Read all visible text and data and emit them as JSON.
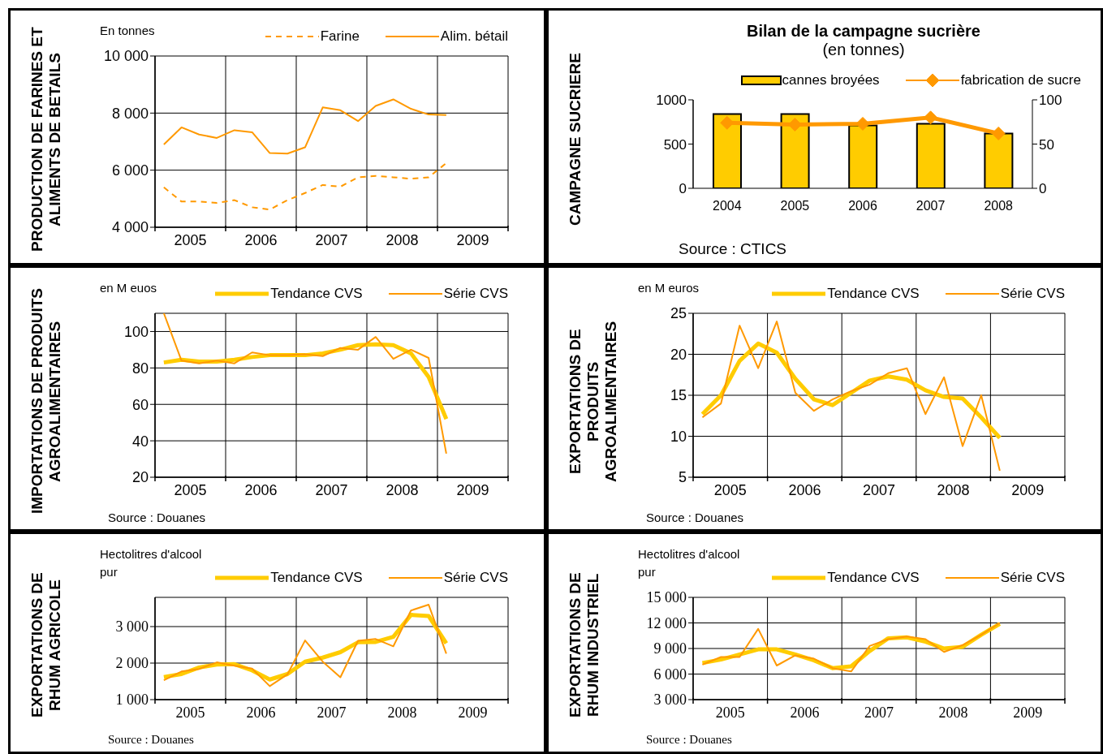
{
  "chart_data": [
    {
      "type": "line",
      "ylabel": "PRODUCTION DE FARINES ET ALIMENTS DE BETAILS",
      "subtitle": "En tonnes",
      "x": [
        2005.125,
        2005.375,
        2005.625,
        2005.875,
        2006.125,
        2006.375,
        2006.625,
        2006.875,
        2007.125,
        2007.375,
        2007.625,
        2007.875,
        2008.125,
        2008.375,
        2008.625,
        2008.875,
        2009.125
      ],
      "series": [
        {
          "name": "Farine",
          "color": "#ff9900",
          "line_style": "dashed",
          "values": [
            5400,
            4900,
            4900,
            4850,
            4950,
            4700,
            4620,
            4950,
            5200,
            5480,
            5420,
            5750,
            5800,
            5750,
            5700,
            5750,
            6250
          ]
        },
        {
          "name": "Alim. bétail",
          "color": "#ff9900",
          "values": [
            6900,
            7500,
            7250,
            7130,
            7400,
            7330,
            6600,
            6580,
            6800,
            8200,
            8100,
            7720,
            8250,
            8480,
            8150,
            7950,
            7930
          ]
        }
      ],
      "xlim": [
        2005,
        2010
      ],
      "xticks": [
        {
          "value": 2005,
          "label": null
        },
        {
          "value": 2005.5,
          "label": "2005"
        },
        {
          "value": 2006,
          "label": null
        },
        {
          "value": 2006.5,
          "label": "2006"
        },
        {
          "value": 2007,
          "label": null
        },
        {
          "value": 2007.5,
          "label": "2007"
        },
        {
          "value": 2008,
          "label": null
        },
        {
          "value": 2008.5,
          "label": "2008"
        },
        {
          "value": 2009,
          "label": null
        },
        {
          "value": 2009.5,
          "label": "2009"
        },
        {
          "value": 2010,
          "label": null
        }
      ],
      "ylim": [
        4000,
        10000
      ],
      "yticks": [
        {
          "value": 4000,
          "label": "4 000"
        },
        {
          "value": 6000,
          "label": "6 000"
        },
        {
          "value": 8000,
          "label": "8 000"
        },
        {
          "value": 10000,
          "label": "10 000"
        }
      ],
      "grid": true,
      "legend": "top right"
    },
    {
      "type": "bar",
      "title": "Bilan de la campagne sucrière",
      "subtitle": "(en tonnes)",
      "ylabel": "CAMPAGNE SUCRIERE",
      "categories": [
        "2004",
        "2005",
        "2006",
        "2007",
        "2008"
      ],
      "series": [
        {
          "name": "cannes broyées",
          "color": "#ffcc00",
          "values": [
            840,
            840,
            710,
            730,
            620
          ]
        },
        {
          "name": "fabrication de sucre",
          "type": "line",
          "axis": "y2",
          "color": "#ff9900",
          "values": [
            74,
            72,
            73,
            80,
            62
          ]
        }
      ],
      "ylim": [
        0,
        1000
      ],
      "yticks": [
        0,
        500,
        1000
      ],
      "y2lim": [
        0,
        100
      ],
      "y2ticks": [
        0,
        50,
        100
      ],
      "marker": "diamond",
      "legend": "top",
      "annotations": [
        "Source : CTICS"
      ]
    },
    {
      "type": "line",
      "ylabel": "IMPORTATIONS DE PRODUITS AGROALIMENTAIRES",
      "subtitle": "en M euos",
      "x": [
        2005.125,
        2005.375,
        2005.625,
        2005.875,
        2006.125,
        2006.375,
        2006.625,
        2006.875,
        2007.125,
        2007.375,
        2007.625,
        2007.875,
        2008.125,
        2008.375,
        2008.625,
        2008.875,
        2009.125
      ],
      "series": [
        {
          "name": "Tendance CVS",
          "color": "#ffcc00",
          "values": [
            83,
            84.5,
            83.5,
            83.5,
            84.5,
            86,
            87,
            87,
            87,
            88,
            90,
            92.5,
            93,
            92.5,
            88,
            75,
            52
          ]
        },
        {
          "name": "Série CVS",
          "color": "#ff9900",
          "values": [
            110,
            84,
            82.5,
            84,
            82.5,
            88.5,
            87,
            87,
            87.5,
            86.5,
            91,
            90,
            97,
            85,
            90,
            85.5,
            33
          ]
        }
      ],
      "xlim": [
        2005,
        2010
      ],
      "xticks": [
        {
          "value": 2005,
          "label": null
        },
        {
          "value": 2005.5,
          "label": "2005"
        },
        {
          "value": 2006,
          "label": null
        },
        {
          "value": 2006.5,
          "label": "2006"
        },
        {
          "value": 2007,
          "label": null
        },
        {
          "value": 2007.5,
          "label": "2007"
        },
        {
          "value": 2008,
          "label": null
        },
        {
          "value": 2008.5,
          "label": "2008"
        },
        {
          "value": 2009,
          "label": null
        },
        {
          "value": 2009.5,
          "label": "2009"
        },
        {
          "value": 2010,
          "label": null
        }
      ],
      "ylim": [
        20,
        110
      ],
      "yticks": [
        20,
        40,
        60,
        80,
        100
      ],
      "grid": true,
      "legend": "top right",
      "annotations": [
        "Source : Douanes"
      ]
    },
    {
      "type": "line",
      "ylabel": "EXPORTATIONS DE PRODUITS AGROALIMENTAIRES",
      "subtitle": "en M euros",
      "x": [
        2005.125,
        2005.375,
        2005.625,
        2005.875,
        2006.125,
        2006.375,
        2006.625,
        2006.875,
        2007.125,
        2007.375,
        2007.625,
        2007.875,
        2008.125,
        2008.375,
        2008.625,
        2008.875,
        2009.125
      ],
      "series": [
        {
          "name": "Tendance CVS",
          "color": "#ffcc00",
          "values": [
            12.7,
            15,
            19.2,
            21.3,
            20.2,
            17,
            14.5,
            13.8,
            15.3,
            16.8,
            17.3,
            16.9,
            15.6,
            14.8,
            14.6,
            12.3,
            9.8
          ]
        },
        {
          "name": "Série CVS",
          "color": "#ff9900",
          "values": [
            12.3,
            14,
            23.5,
            18.3,
            24,
            15.3,
            13.1,
            14.5,
            15.5,
            16.3,
            17.7,
            18.3,
            12.7,
            17.2,
            8.8,
            15,
            5.8
          ]
        }
      ],
      "xlim": [
        2005,
        2010
      ],
      "xticks": [
        {
          "value": 2005,
          "label": null
        },
        {
          "value": 2005.5,
          "label": "2005"
        },
        {
          "value": 2006,
          "label": null
        },
        {
          "value": 2006.5,
          "label": "2006"
        },
        {
          "value": 2007,
          "label": null
        },
        {
          "value": 2007.5,
          "label": "2007"
        },
        {
          "value": 2008,
          "label": null
        },
        {
          "value": 2008.5,
          "label": "2008"
        },
        {
          "value": 2009,
          "label": null
        },
        {
          "value": 2009.5,
          "label": "2009"
        },
        {
          "value": 2010,
          "label": null
        }
      ],
      "ylim": [
        5,
        25
      ],
      "yticks": [
        5,
        10,
        15,
        20,
        25
      ],
      "grid": true,
      "legend": "top right",
      "annotations": [
        "Source : Douanes"
      ]
    },
    {
      "type": "line",
      "ylabel": "EXPORTATIONS DE RHUM AGRICOLE",
      "subtitle": "Hectolitres d'alcool pur",
      "x": [
        2005.125,
        2005.375,
        2005.625,
        2005.875,
        2006.125,
        2006.375,
        2006.625,
        2006.875,
        2007.125,
        2007.375,
        2007.625,
        2007.875,
        2008.125,
        2008.375,
        2008.625,
        2008.875,
        2009.125
      ],
      "series": [
        {
          "name": "Tendance CVS",
          "color": "#ffcc00",
          "values": [
            1620,
            1700,
            1880,
            1960,
            1970,
            1800,
            1550,
            1700,
            2040,
            2150,
            2300,
            2570,
            2580,
            2720,
            3320,
            3290,
            2540
          ]
        },
        {
          "name": "Série CVS",
          "color": "#ff9900",
          "values": [
            1530,
            1770,
            1840,
            2020,
            1930,
            1850,
            1370,
            1690,
            2620,
            2040,
            1610,
            2610,
            2660,
            2460,
            3440,
            3600,
            2260
          ]
        }
      ],
      "xlim": [
        2005,
        2010
      ],
      "xticks": [
        {
          "value": 2005,
          "label": null
        },
        {
          "value": 2005.5,
          "label": "2005"
        },
        {
          "value": 2006,
          "label": null
        },
        {
          "value": 2006.5,
          "label": "2006"
        },
        {
          "value": 2007,
          "label": null
        },
        {
          "value": 2007.5,
          "label": "2007"
        },
        {
          "value": 2008,
          "label": null
        },
        {
          "value": 2008.5,
          "label": "2008"
        },
        {
          "value": 2009,
          "label": null
        },
        {
          "value": 2009.5,
          "label": "2009"
        },
        {
          "value": 2010,
          "label": null
        }
      ],
      "ylim": [
        1000,
        3800
      ],
      "yticks": [
        {
          "value": 1000,
          "label": "1 000"
        },
        {
          "value": 2000,
          "label": "2 000"
        },
        {
          "value": 3000,
          "label": "3 000"
        }
      ],
      "grid": true,
      "legend": "top right",
      "annotations": [
        "Source : Douanes"
      ]
    },
    {
      "type": "line",
      "ylabel": "EXPORTATIONS DE RHUM INDUSTRIEL",
      "subtitle": "Hectolitres d'alcool pur",
      "x": [
        2005.125,
        2005.375,
        2005.625,
        2005.875,
        2006.125,
        2006.375,
        2006.625,
        2006.875,
        2007.125,
        2007.375,
        2007.625,
        2007.875,
        2008.125,
        2008.375,
        2008.625,
        2008.875,
        2009.125
      ],
      "series": [
        {
          "name": "Tendance CVS",
          "color": "#ffcc00",
          "values": [
            7300,
            7700,
            8300,
            8900,
            8900,
            8300,
            7600,
            6700,
            6900,
            8700,
            10200,
            10300,
            9800,
            9000,
            9200,
            10600,
            11900
          ]
        },
        {
          "name": "Série CVS",
          "color": "#ff9900",
          "values": [
            7100,
            8000,
            8000,
            11300,
            7000,
            8200,
            7800,
            6700,
            6300,
            9300,
            10100,
            10400,
            10100,
            8600,
            9400,
            10600,
            12000
          ]
        }
      ],
      "xlim": [
        2005,
        2010
      ],
      "xticks": [
        {
          "value": 2005,
          "label": null
        },
        {
          "value": 2005.5,
          "label": "2005"
        },
        {
          "value": 2006,
          "label": null
        },
        {
          "value": 2006.5,
          "label": "2006"
        },
        {
          "value": 2007,
          "label": null
        },
        {
          "value": 2007.5,
          "label": "2007"
        },
        {
          "value": 2008,
          "label": null
        },
        {
          "value": 2008.5,
          "label": "2008"
        },
        {
          "value": 2009,
          "label": null
        },
        {
          "value": 2009.5,
          "label": "2009"
        },
        {
          "value": 2010,
          "label": null
        }
      ],
      "ylim": [
        3000,
        15000
      ],
      "yticks": [
        {
          "value": 3000,
          "label": "3 000"
        },
        {
          "value": 6000,
          "label": "6 000"
        },
        {
          "value": 9000,
          "label": "9 000"
        },
        {
          "value": 12000,
          "label": "12 000"
        },
        {
          "value": 15000,
          "label": "15 000"
        }
      ],
      "grid": true,
      "legend": "top right",
      "annotations": [
        "Source : Douanes"
      ]
    }
  ]
}
